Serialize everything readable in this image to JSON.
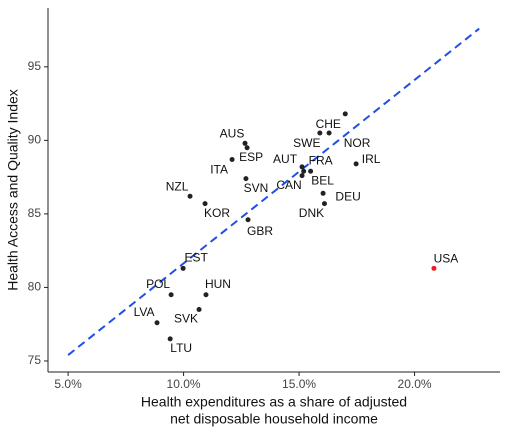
{
  "chart_data": {
    "type": "scatter",
    "x_label": [
      "Health expenditures as a share of adjusted",
      "net disposable household income"
    ],
    "y_label": "Health Access and Quality Index",
    "labels": [
      "CHE",
      "SWE",
      "NOR",
      "AUS",
      "ESP",
      "ITA",
      "AUT",
      "FRA",
      "CAN",
      "IRL",
      "SVN",
      "BEL",
      "DEU",
      "DNK",
      "NZL",
      "KOR",
      "GBR",
      "EST",
      "POL",
      "HUN",
      "SVK",
      "LVA",
      "LTU",
      "USA"
    ],
    "x": [
      17.0,
      15.9,
      16.3,
      12.66,
      12.75,
      12.1,
      15.13,
      15.2,
      15.13,
      17.47,
      12.7,
      15.5,
      16.04,
      16.1,
      10.28,
      10.93,
      12.79,
      9.98,
      9.46,
      10.97,
      10.67,
      8.85,
      9.42,
      20.84
    ],
    "y": [
      91.8,
      90.5,
      90.5,
      89.8,
      89.5,
      88.7,
      88.2,
      87.9,
      87.6,
      88.4,
      87.4,
      87.9,
      86.4,
      85.7,
      86.2,
      85.7,
      84.6,
      81.3,
      79.5,
      79.5,
      78.5,
      77.6,
      76.5,
      81.3
    ],
    "colors": [
      "#222222",
      "#222222",
      "#222222",
      "#222222",
      "#222222",
      "#222222",
      "#222222",
      "#222222",
      "#222222",
      "#222222",
      "#222222",
      "#222222",
      "#222222",
      "#222222",
      "#222222",
      "#222222",
      "#222222",
      "#222222",
      "#222222",
      "#222222",
      "#222222",
      "#222222",
      "#222222",
      "#e8202a"
    ],
    "trendline": {
      "x": [
        5,
        22.8
      ],
      "y": [
        75.4,
        97.6
      ],
      "color": "#1f4fe8"
    },
    "xlim": [
      4.13,
      23.7
    ],
    "ylim": [
      74.25,
      99.0
    ],
    "xticks": [
      {
        "value": 5,
        "label": "5.0%"
      },
      {
        "value": 10,
        "label": "10.0%"
      },
      {
        "value": 15,
        "label": "15.0%"
      },
      {
        "value": 20,
        "label": "20.0%"
      }
    ],
    "yticks": [
      75,
      80,
      85,
      90,
      95
    ]
  }
}
